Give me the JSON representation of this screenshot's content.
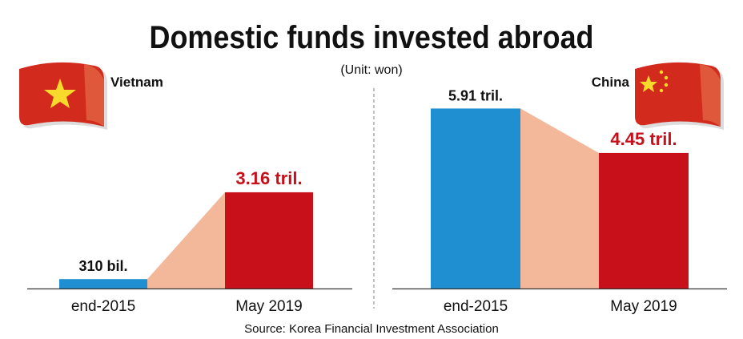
{
  "title": "Domestic funds invested abroad",
  "unit_note": "(Unit: won)",
  "source": "Source: Korea Financial Investment Association",
  "colors": {
    "blue": "#1F8FD1",
    "red": "#C8101A",
    "connector": "#F3B79A",
    "text": "#111111"
  },
  "chart_data": [
    {
      "type": "bar",
      "name": "Vietnam",
      "categories": [
        "end-2015",
        "May 2019"
      ],
      "values": [
        0.31,
        3.16
      ],
      "unit": "tril. won",
      "data_labels": [
        "310 bil.",
        "3.16 tril."
      ],
      "flag_icon": "vietnam-flag-icon"
    },
    {
      "type": "bar",
      "name": "China",
      "categories": [
        "end-2015",
        "May 2019"
      ],
      "values": [
        5.91,
        4.45
      ],
      "unit": "tril. won",
      "data_labels": [
        "5.91 tril.",
        "4.45 tril."
      ],
      "flag_icon": "china-flag-icon"
    }
  ]
}
